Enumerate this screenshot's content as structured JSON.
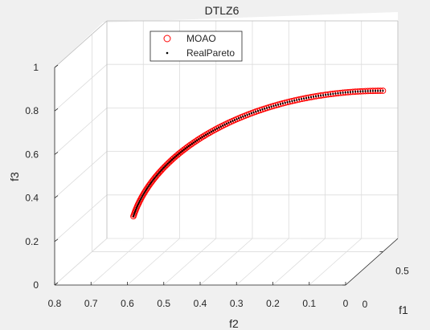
{
  "chart_data": {
    "type": "scatter3d",
    "title": "DTLZ6",
    "xlabel": "f1",
    "ylabel": "f2",
    "zlabel": "f3",
    "xlim": [
      0,
      0.7
    ],
    "ylim": [
      0,
      0.8
    ],
    "zlim": [
      0,
      1
    ],
    "x_ticks": [
      "0",
      "0.5"
    ],
    "y_ticks": [
      "0.8",
      "0.7",
      "0.6",
      "0.5",
      "0.4",
      "0.3",
      "0.2",
      "0.1",
      "0"
    ],
    "z_ticks": [
      "0",
      "0.2",
      "0.4",
      "0.6",
      "0.8",
      "1"
    ],
    "grid": true,
    "legend": {
      "location": "top-left"
    },
    "series": [
      {
        "name": "MOAO",
        "marker": "circle",
        "color": "#ff0000",
        "curve": {
          "x": 0.5,
          "theta_start": 0.2,
          "theta_end": 1.5708,
          "n": 140
        }
      },
      {
        "name": "RealPareto",
        "marker": "dot",
        "color": "#000000",
        "curve": {
          "x": 0.5,
          "theta_start": 0.2,
          "theta_end": 1.5708,
          "n": 140
        }
      }
    ]
  }
}
